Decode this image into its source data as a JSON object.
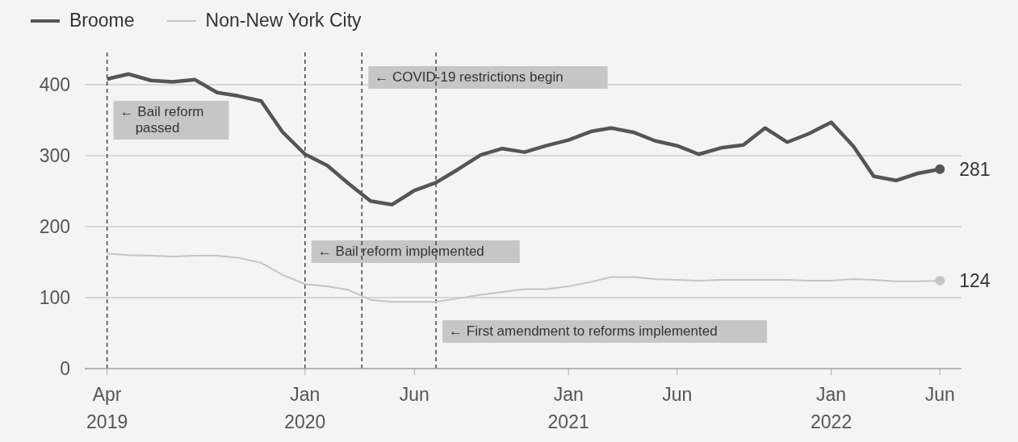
{
  "chart_data": {
    "type": "line",
    "x": [
      "2019-04",
      "2019-05",
      "2019-06",
      "2019-07",
      "2019-08",
      "2019-09",
      "2019-10",
      "2019-11",
      "2019-12",
      "2020-01",
      "2020-02",
      "2020-03",
      "2020-04",
      "2020-05",
      "2020-06",
      "2020-07",
      "2020-08",
      "2020-09",
      "2020-10",
      "2020-11",
      "2020-12",
      "2021-01",
      "2021-02",
      "2021-03",
      "2021-04",
      "2021-05",
      "2021-06",
      "2021-07",
      "2021-08",
      "2021-09",
      "2021-10",
      "2021-11",
      "2021-12",
      "2022-01",
      "2022-02",
      "2022-03",
      "2022-04",
      "2022-05",
      "2022-06"
    ],
    "series": [
      {
        "name": "Broome",
        "color": "#555555",
        "values": [
          408,
          415,
          406,
          404,
          407,
          389,
          384,
          377,
          333,
          302,
          286,
          261,
          236,
          231,
          251,
          262,
          281,
          301,
          310,
          305,
          314,
          322,
          334,
          339,
          333,
          321,
          314,
          302,
          311,
          315,
          339,
          319,
          331,
          347,
          313,
          271,
          265,
          275,
          281
        ],
        "value_labels": [
          null,
          null,
          null,
          null,
          null,
          null,
          null,
          null,
          null,
          null,
          null,
          null,
          null,
          null,
          null,
          null,
          null,
          null,
          null,
          null,
          null,
          null,
          null,
          null,
          null,
          null,
          null,
          null,
          null,
          null,
          null,
          null,
          null,
          null,
          null,
          null,
          null,
          null,
          "281"
        ]
      },
      {
        "name": "Non-New York City",
        "color": "#c4c4c4",
        "values": [
          162,
          160,
          159,
          158,
          159,
          159,
          156,
          149,
          132,
          119,
          116,
          111,
          97,
          94,
          94,
          94,
          99,
          104,
          108,
          112,
          112,
          116,
          122,
          129,
          129,
          126,
          125,
          124,
          125,
          125,
          125,
          125,
          124,
          124,
          126,
          125,
          123,
          123,
          124
        ],
        "value_labels": [
          null,
          null,
          null,
          null,
          null,
          null,
          null,
          null,
          null,
          null,
          null,
          null,
          null,
          null,
          null,
          null,
          null,
          null,
          null,
          null,
          null,
          null,
          null,
          null,
          null,
          null,
          null,
          null,
          null,
          null,
          null,
          null,
          null,
          null,
          null,
          null,
          null,
          null,
          "124"
        ]
      }
    ],
    "xlim": [
      "2019-03",
      "2022-07"
    ],
    "xticks": [
      {
        "value": "2019-04",
        "label": "Apr 2019"
      },
      {
        "value": "2020-01",
        "label": "Jan 2020"
      },
      {
        "value": "2020-06",
        "label": "Jun"
      },
      {
        "value": "2021-01",
        "label": "Jan 2021"
      },
      {
        "value": "2021-06",
        "label": "Jun"
      },
      {
        "value": "2022-01",
        "label": "Jan 2022"
      },
      {
        "value": "2022-06",
        "label": "Jun"
      }
    ],
    "ylim": [
      0,
      450
    ],
    "yticks": [
      0,
      100,
      200,
      300,
      400
    ],
    "grid": "y",
    "legend": "top left",
    "marker": "none",
    "line_style": "solid",
    "ref_lines": [
      {
        "axis": "x",
        "value": "2019-04",
        "label": "← Bail reform passed",
        "color": "#444444",
        "line_style": "dashed"
      },
      {
        "axis": "x",
        "value": "2020-01",
        "label": "← Bail reform implemented",
        "color": "#444444",
        "line_style": "dashed"
      },
      {
        "axis": "x",
        "value": "2020-03-20",
        "label": "← COVID-19 restrictions begin",
        "color": "#444444",
        "line_style": "dashed"
      },
      {
        "axis": "x",
        "value": "2020-07-01",
        "label": "← First amendment to reforms implemented",
        "color": "#444444",
        "line_style": "dashed"
      }
    ]
  }
}
